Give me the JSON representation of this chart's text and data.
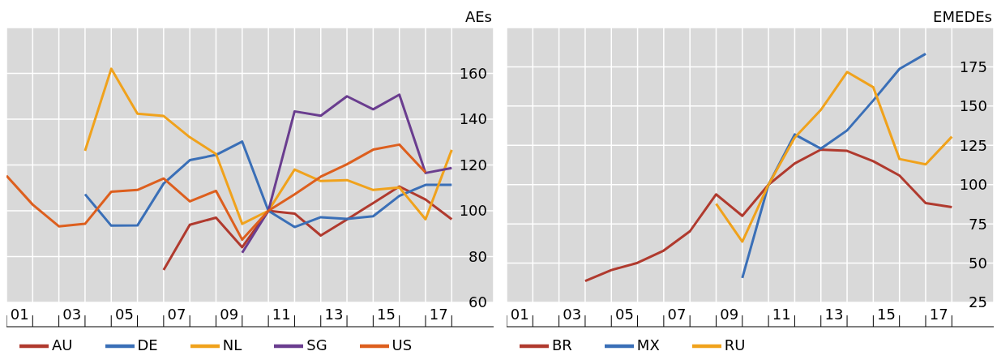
{
  "chart_data": [
    {
      "type": "line",
      "ylabel": "AEs",
      "x": [
        0.5,
        1.5,
        2.5,
        3.5,
        4.5,
        5.5,
        6.5,
        7.5,
        8.5,
        9.5,
        10.5,
        11.5,
        12.5,
        13.5,
        14.5,
        15.5,
        16.5,
        17.5
      ],
      "series": [
        {
          "name": "AU",
          "color": "#b03a2e",
          "values": [
            null,
            null,
            null,
            null,
            null,
            null,
            74.2,
            93.9,
            97,
            84.1,
            100,
            98.8,
            89.2,
            96.2,
            103.4,
            110.6,
            104.9,
            96.3
          ]
        },
        {
          "name": "DE",
          "color": "#3a6fb7",
          "values": [
            null,
            null,
            null,
            107.2,
            93.5,
            93.6,
            111.9,
            122.1,
            124.4,
            130.2,
            100,
            92.9,
            97.2,
            96.5,
            97.6,
            106.5,
            111.3,
            111.3
          ]
        },
        {
          "name": "NL",
          "color": "#f0a21c",
          "values": [
            null,
            null,
            null,
            126.2,
            162,
            142.4,
            141.4,
            132.1,
            124.8,
            94.3,
            100,
            118,
            113,
            113.4,
            109.1,
            110.2,
            96.3,
            126.6
          ]
        },
        {
          "name": "SG",
          "color": "#6a3d8f",
          "values": [
            null,
            null,
            null,
            null,
            null,
            null,
            null,
            null,
            null,
            81.7,
            100,
            143.4,
            141.5,
            150,
            144.3,
            150.7,
            116.5,
            118.7
          ]
        },
        {
          "name": "US",
          "color": "#dd5f1e",
          "values": [
            115.3,
            102.7,
            93.2,
            94.3,
            108.3,
            109.1,
            114.1,
            104.1,
            108.7,
            87.4,
            100,
            107.2,
            114.9,
            120.3,
            126.7,
            128.9,
            116.7,
            null
          ]
        }
      ],
      "xlim": [
        0.5,
        19.1
      ],
      "xticks": [
        {
          "value": 1,
          "label": "01"
        },
        {
          "value": 3,
          "label": "03"
        },
        {
          "value": 5,
          "label": "05"
        },
        {
          "value": 7,
          "label": "07"
        },
        {
          "value": 9,
          "label": "09"
        },
        {
          "value": 11,
          "label": "11"
        },
        {
          "value": 13,
          "label": "13"
        },
        {
          "value": 15,
          "label": "15"
        },
        {
          "value": 17,
          "label": "17"
        },
        {
          "value": 0.5,
          "label": null
        },
        {
          "value": 1.5,
          "label": null
        },
        {
          "value": 2.5,
          "label": null
        },
        {
          "value": 3.5,
          "label": null
        },
        {
          "value": 4.5,
          "label": null
        },
        {
          "value": 5.5,
          "label": null
        },
        {
          "value": 6.5,
          "label": null
        },
        {
          "value": 7.5,
          "label": null
        },
        {
          "value": 8.5,
          "label": null
        },
        {
          "value": 9.5,
          "label": null
        },
        {
          "value": 10.5,
          "label": null
        },
        {
          "value": 11.5,
          "label": null
        },
        {
          "value": 12.5,
          "label": null
        },
        {
          "value": 13.5,
          "label": null
        },
        {
          "value": 14.5,
          "label": null
        },
        {
          "value": 15.5,
          "label": null
        },
        {
          "value": 16.5,
          "label": null
        },
        {
          "value": 17.5,
          "label": null
        }
      ],
      "ylim": [
        60,
        180
      ],
      "yticks": [
        60,
        80,
        100,
        120,
        140,
        160
      ],
      "grid": true,
      "legend": "bottom",
      "marker": "none",
      "line_style": "solid"
    },
    {
      "type": "line",
      "ylabel": "EMEDEs",
      "x": [
        3.5,
        4.5,
        5.5,
        6.5,
        7.5,
        8.5,
        9.5,
        10.5,
        11.5,
        12.5,
        13.5,
        14.5,
        15.5,
        16.5,
        17.5
      ],
      "series": [
        {
          "name": "BR",
          "color": "#b03a2e",
          "values": [
            38.6,
            45.6,
            50.2,
            58,
            70.3,
            93.8,
            80.1,
            100,
            113.5,
            122.3,
            121.5,
            114.9,
            105.8,
            88.2,
            85.7
          ]
        },
        {
          "name": "MX",
          "color": "#3a6fb7",
          "values": [
            null,
            null,
            null,
            null,
            null,
            null,
            40.6,
            100,
            131.9,
            122.9,
            134.5,
            153.6,
            173.7,
            183.3,
            null
          ]
        },
        {
          "name": "RU",
          "color": "#f0a21c",
          "values": [
            null,
            null,
            null,
            null,
            null,
            87.8,
            63.7,
            100,
            129.9,
            147.6,
            171.7,
            162,
            116.3,
            112.9,
            130.5
          ]
        }
      ],
      "xlim": [
        0.5,
        19.1
      ],
      "xticks": [
        {
          "value": 1,
          "label": "01"
        },
        {
          "value": 3,
          "label": "03"
        },
        {
          "value": 5,
          "label": "05"
        },
        {
          "value": 7,
          "label": "07"
        },
        {
          "value": 9,
          "label": "09"
        },
        {
          "value": 11,
          "label": "11"
        },
        {
          "value": 13,
          "label": "13"
        },
        {
          "value": 15,
          "label": "15"
        },
        {
          "value": 17,
          "label": "17"
        },
        {
          "value": 0.5,
          "label": null
        },
        {
          "value": 1.5,
          "label": null
        },
        {
          "value": 2.5,
          "label": null
        },
        {
          "value": 3.5,
          "label": null
        },
        {
          "value": 4.5,
          "label": null
        },
        {
          "value": 5.5,
          "label": null
        },
        {
          "value": 6.5,
          "label": null
        },
        {
          "value": 7.5,
          "label": null
        },
        {
          "value": 8.5,
          "label": null
        },
        {
          "value": 9.5,
          "label": null
        },
        {
          "value": 10.5,
          "label": null
        },
        {
          "value": 11.5,
          "label": null
        },
        {
          "value": 12.5,
          "label": null
        },
        {
          "value": 13.5,
          "label": null
        },
        {
          "value": 14.5,
          "label": null
        },
        {
          "value": 15.5,
          "label": null
        },
        {
          "value": 16.5,
          "label": null
        },
        {
          "value": 17.5,
          "label": null
        }
      ],
      "ylim": [
        25,
        200
      ],
      "yticks": [
        25,
        50,
        75,
        100,
        125,
        150,
        175
      ],
      "grid": true,
      "legend": "bottom",
      "marker": "none",
      "line_style": "solid"
    }
  ]
}
